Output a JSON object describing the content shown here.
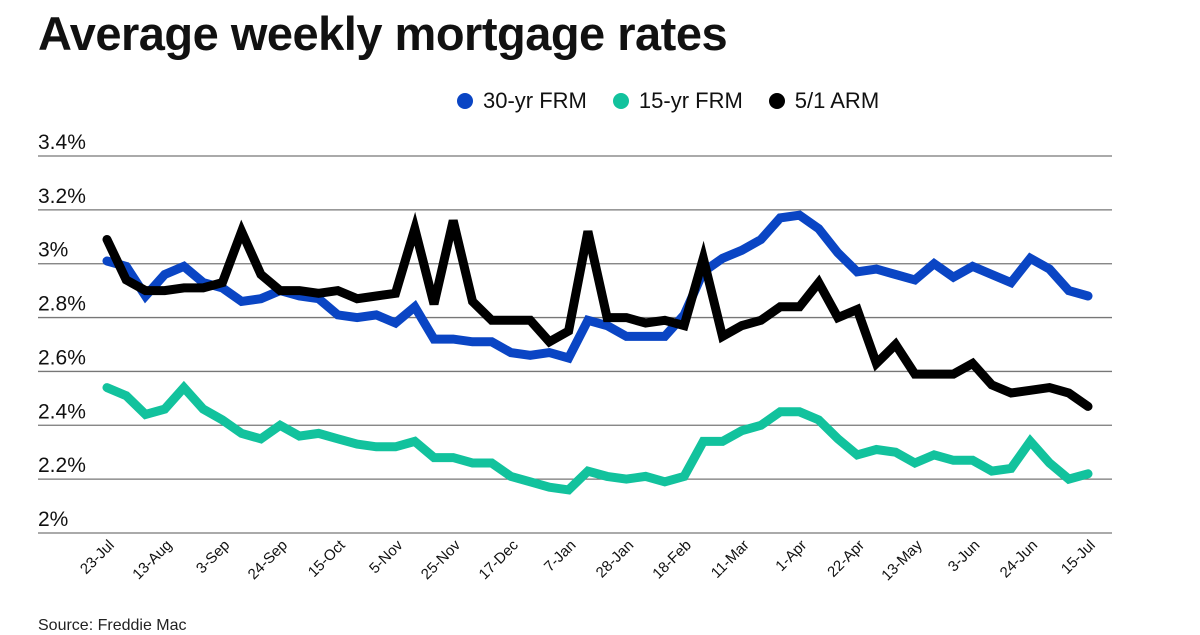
{
  "chart_data": {
    "type": "line",
    "title": "Average weekly mortgage rates",
    "source": "Source: Freddie Mac",
    "xlabel": "",
    "ylabel": "",
    "ylim": [
      2.0,
      3.4
    ],
    "yticks": [
      2.0,
      2.2,
      2.4,
      2.6,
      2.8,
      3.0,
      3.2,
      3.4
    ],
    "ytick_labels": [
      "2%",
      "2.2%",
      "2.4%",
      "2.6%",
      "2.8%",
      "3%",
      "3.2%",
      "3.4%"
    ],
    "xtick_labels": [
      "23-Jul",
      "13-Aug",
      "3-Sep",
      "24-Sep",
      "15-Oct",
      "5-Nov",
      "25-Nov",
      "17-Dec",
      "7-Jan",
      "28-Jan",
      "18-Feb",
      "11-Mar",
      "1-Apr",
      "22-Apr",
      "13-May",
      "3-Jun",
      "24-Jun",
      "15-Jul"
    ],
    "xtick_every_weeks": 3,
    "grid": true,
    "legend_position": "top-right",
    "series": [
      {
        "name": "30-yr FRM",
        "color": "#0a45c4",
        "values": [
          3.01,
          2.99,
          2.88,
          2.96,
          2.99,
          2.93,
          2.91,
          2.86,
          2.87,
          2.9,
          2.88,
          2.87,
          2.81,
          2.8,
          2.81,
          2.78,
          2.84,
          2.72,
          2.72,
          2.71,
          2.71,
          2.67,
          2.66,
          2.67,
          2.65,
          2.79,
          2.77,
          2.73,
          2.73,
          2.73,
          2.81,
          2.97,
          3.02,
          3.05,
          3.09,
          3.17,
          3.18,
          3.13,
          3.04,
          2.97,
          2.98,
          2.96,
          2.94,
          3.0,
          2.95,
          2.99,
          2.96,
          2.93,
          3.02,
          2.98,
          2.9,
          2.88
        ]
      },
      {
        "name": "15-yr FRM",
        "color": "#12c29d",
        "values": [
          2.54,
          2.51,
          2.44,
          2.46,
          2.54,
          2.46,
          2.42,
          2.37,
          2.35,
          2.4,
          2.36,
          2.37,
          2.35,
          2.33,
          2.32,
          2.32,
          2.34,
          2.28,
          2.28,
          2.26,
          2.26,
          2.21,
          2.19,
          2.17,
          2.16,
          2.23,
          2.21,
          2.2,
          2.21,
          2.19,
          2.21,
          2.34,
          2.34,
          2.38,
          2.4,
          2.45,
          2.45,
          2.42,
          2.35,
          2.29,
          2.31,
          2.3,
          2.26,
          2.29,
          2.27,
          2.27,
          2.23,
          2.24,
          2.34,
          2.26,
          2.2,
          2.22
        ]
      },
      {
        "name": "5/1 ARM",
        "color": "#000000",
        "values": [
          3.09,
          2.94,
          2.9,
          2.9,
          2.91,
          2.91,
          2.93,
          3.12,
          2.96,
          2.9,
          2.9,
          2.89,
          2.9,
          2.87,
          2.88,
          2.89,
          3.13,
          2.85,
          3.16,
          2.86,
          2.79,
          2.79,
          2.79,
          2.71,
          2.75,
          3.12,
          2.8,
          2.8,
          2.78,
          2.79,
          2.77,
          3.02,
          2.73,
          2.77,
          2.79,
          2.84,
          2.84,
          2.93,
          2.8,
          2.83,
          2.63,
          2.7,
          2.59,
          2.59,
          2.59,
          2.63,
          2.55,
          2.52,
          2.53,
          2.54,
          2.52,
          2.47
        ]
      }
    ]
  }
}
